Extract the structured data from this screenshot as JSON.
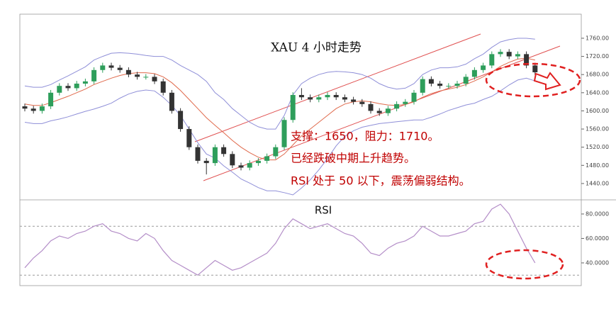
{
  "chart_data": [
    {
      "type": "candlestick",
      "title": "XAU 4 小时走势",
      "annotations": [
        "支撑：1650，阻力：1710。",
        "已经跌破中期上升趋势。",
        "RSI 处于 50 以下，震荡偏弱结构。"
      ],
      "up_color": "#2e9e5b",
      "down_color": "#333333",
      "band_color": "#8f8fd8",
      "middle_color": "#e06a4c",
      "ylim": [
        1404,
        1813
      ],
      "yticks": [
        {
          "value": 1440,
          "label": "1440.00"
        },
        {
          "value": 1480,
          "label": "1480.00"
        },
        {
          "value": 1520,
          "label": "1520.00"
        },
        {
          "value": 1560,
          "label": "1560.00"
        },
        {
          "value": 1600,
          "label": "1600.00"
        },
        {
          "value": 1640,
          "label": "1640.00"
        },
        {
          "value": 1680,
          "label": "1680.00"
        },
        {
          "value": 1720,
          "label": "1720.00"
        },
        {
          "value": 1760,
          "label": "1760.00"
        }
      ],
      "ohlc": [
        [
          1610,
          1616,
          1599,
          1605
        ],
        [
          1605,
          1611,
          1594,
          1600
        ],
        [
          1600,
          1616,
          1594,
          1610
        ],
        [
          1610,
          1646,
          1604,
          1640
        ],
        [
          1640,
          1661,
          1634,
          1655
        ],
        [
          1655,
          1661,
          1644,
          1650
        ],
        [
          1650,
          1666,
          1644,
          1660
        ],
        [
          1660,
          1671,
          1654,
          1665
        ],
        [
          1665,
          1696,
          1659,
          1690
        ],
        [
          1690,
          1706,
          1684,
          1700
        ],
        [
          1700,
          1706,
          1689,
          1695
        ],
        [
          1695,
          1701,
          1684,
          1690
        ],
        [
          1690,
          1696,
          1674,
          1680
        ],
        [
          1680,
          1686,
          1669,
          1675
        ],
        [
          1675,
          1681,
          1669,
          1675
        ],
        [
          1675,
          1681,
          1659,
          1665
        ],
        [
          1665,
          1671,
          1634,
          1640
        ],
        [
          1640,
          1646,
          1594,
          1600
        ],
        [
          1600,
          1606,
          1554,
          1560
        ],
        [
          1560,
          1566,
          1514,
          1520
        ],
        [
          1520,
          1526,
          1484,
          1490
        ],
        [
          1490,
          1496,
          1460,
          1485
        ],
        [
          1485,
          1526,
          1479,
          1520
        ],
        [
          1520,
          1526,
          1499,
          1505
        ],
        [
          1505,
          1511,
          1474,
          1480
        ],
        [
          1480,
          1486,
          1469,
          1475
        ],
        [
          1475,
          1491,
          1469,
          1485
        ],
        [
          1485,
          1496,
          1479,
          1490
        ],
        [
          1490,
          1506,
          1484,
          1500
        ],
        [
          1500,
          1526,
          1494,
          1520
        ],
        [
          1520,
          1586,
          1514,
          1580
        ],
        [
          1580,
          1641,
          1574,
          1635
        ],
        [
          1635,
          1650,
          1624,
          1630
        ],
        [
          1630,
          1636,
          1619,
          1625
        ],
        [
          1625,
          1636,
          1619,
          1630
        ],
        [
          1630,
          1641,
          1624,
          1635
        ],
        [
          1635,
          1641,
          1624,
          1630
        ],
        [
          1630,
          1636,
          1619,
          1625
        ],
        [
          1625,
          1631,
          1614,
          1620
        ],
        [
          1620,
          1626,
          1609,
          1615
        ],
        [
          1615,
          1621,
          1594,
          1600
        ],
        [
          1600,
          1606,
          1589,
          1595
        ],
        [
          1595,
          1611,
          1589,
          1605
        ],
        [
          1605,
          1621,
          1599,
          1615
        ],
        [
          1615,
          1626,
          1609,
          1620
        ],
        [
          1620,
          1646,
          1614,
          1640
        ],
        [
          1640,
          1676,
          1634,
          1670
        ],
        [
          1670,
          1676,
          1654,
          1660
        ],
        [
          1660,
          1666,
          1649,
          1655
        ],
        [
          1655,
          1661,
          1649,
          1655
        ],
        [
          1655,
          1666,
          1649,
          1660
        ],
        [
          1660,
          1681,
          1654,
          1675
        ],
        [
          1675,
          1696,
          1669,
          1690
        ],
        [
          1690,
          1706,
          1684,
          1700
        ],
        [
          1700,
          1731,
          1694,
          1725
        ],
        [
          1725,
          1736,
          1719,
          1730
        ],
        [
          1730,
          1736,
          1714,
          1720
        ],
        [
          1720,
          1731,
          1714,
          1725
        ],
        [
          1725,
          1731,
          1694,
          1700
        ],
        [
          1700,
          1706,
          1679,
          1685
        ]
      ],
      "upper_band": [
        1655,
        1652,
        1652,
        1658,
        1668,
        1677,
        1687,
        1697,
        1712,
        1720,
        1727,
        1728,
        1727,
        1725,
        1722,
        1720,
        1720,
        1712,
        1700,
        1690,
        1680,
        1665,
        1640,
        1625,
        1605,
        1590,
        1575,
        1565,
        1560,
        1560,
        1590,
        1635,
        1660,
        1672,
        1680,
        1685,
        1687,
        1686,
        1684,
        1680,
        1672,
        1660,
        1652,
        1648,
        1650,
        1660,
        1680,
        1690,
        1695,
        1695,
        1697,
        1703,
        1715,
        1725,
        1740,
        1752,
        1757,
        1760,
        1760,
        1758
      ],
      "middle_band": [
        1615,
        1612,
        1612,
        1618,
        1625,
        1632,
        1640,
        1648,
        1658,
        1665,
        1672,
        1678,
        1682,
        1684,
        1684,
        1682,
        1675,
        1662,
        1645,
        1625,
        1605,
        1585,
        1568,
        1552,
        1535,
        1520,
        1508,
        1498,
        1492,
        1492,
        1505,
        1525,
        1545,
        1560,
        1575,
        1590,
        1605,
        1615,
        1620,
        1622,
        1620,
        1616,
        1613,
        1612,
        1614,
        1620,
        1630,
        1638,
        1644,
        1648,
        1652,
        1658,
        1666,
        1675,
        1686,
        1698,
        1707,
        1714,
        1716,
        1712
      ],
      "lower_band": [
        1575,
        1572,
        1572,
        1578,
        1582,
        1587,
        1593,
        1599,
        1604,
        1610,
        1617,
        1628,
        1637,
        1643,
        1646,
        1644,
        1630,
        1612,
        1590,
        1560,
        1530,
        1505,
        1496,
        1479,
        1465,
        1450,
        1441,
        1431,
        1424,
        1424,
        1420,
        1415,
        1430,
        1448,
        1470,
        1495,
        1523,
        1544,
        1556,
        1564,
        1568,
        1572,
        1574,
        1576,
        1578,
        1580,
        1580,
        1586,
        1593,
        1601,
        1607,
        1613,
        1617,
        1625,
        1632,
        1644,
        1657,
        1668,
        1672,
        1666
      ]
    },
    {
      "type": "line",
      "title": "RSI",
      "color": "#b48ec8",
      "ylim": [
        22,
        90.4
      ],
      "yticks": [
        {
          "value": 40,
          "label": "40.0000"
        },
        {
          "value": 60,
          "label": "60.0000"
        },
        {
          "value": 80,
          "label": "80.0000"
        }
      ],
      "hlines": [
        70,
        30
      ],
      "values": [
        36,
        44,
        50,
        58,
        62,
        60,
        64,
        66,
        70,
        72,
        66,
        64,
        60,
        58,
        64,
        60,
        50,
        42,
        38,
        34,
        30,
        36,
        42,
        38,
        34,
        36,
        40,
        44,
        48,
        56,
        68,
        76,
        72,
        68,
        70,
        72,
        68,
        64,
        62,
        56,
        48,
        46,
        52,
        56,
        58,
        62,
        70,
        66,
        62,
        62,
        64,
        66,
        72,
        74,
        84,
        88,
        80,
        66,
        52,
        40
      ]
    }
  ]
}
